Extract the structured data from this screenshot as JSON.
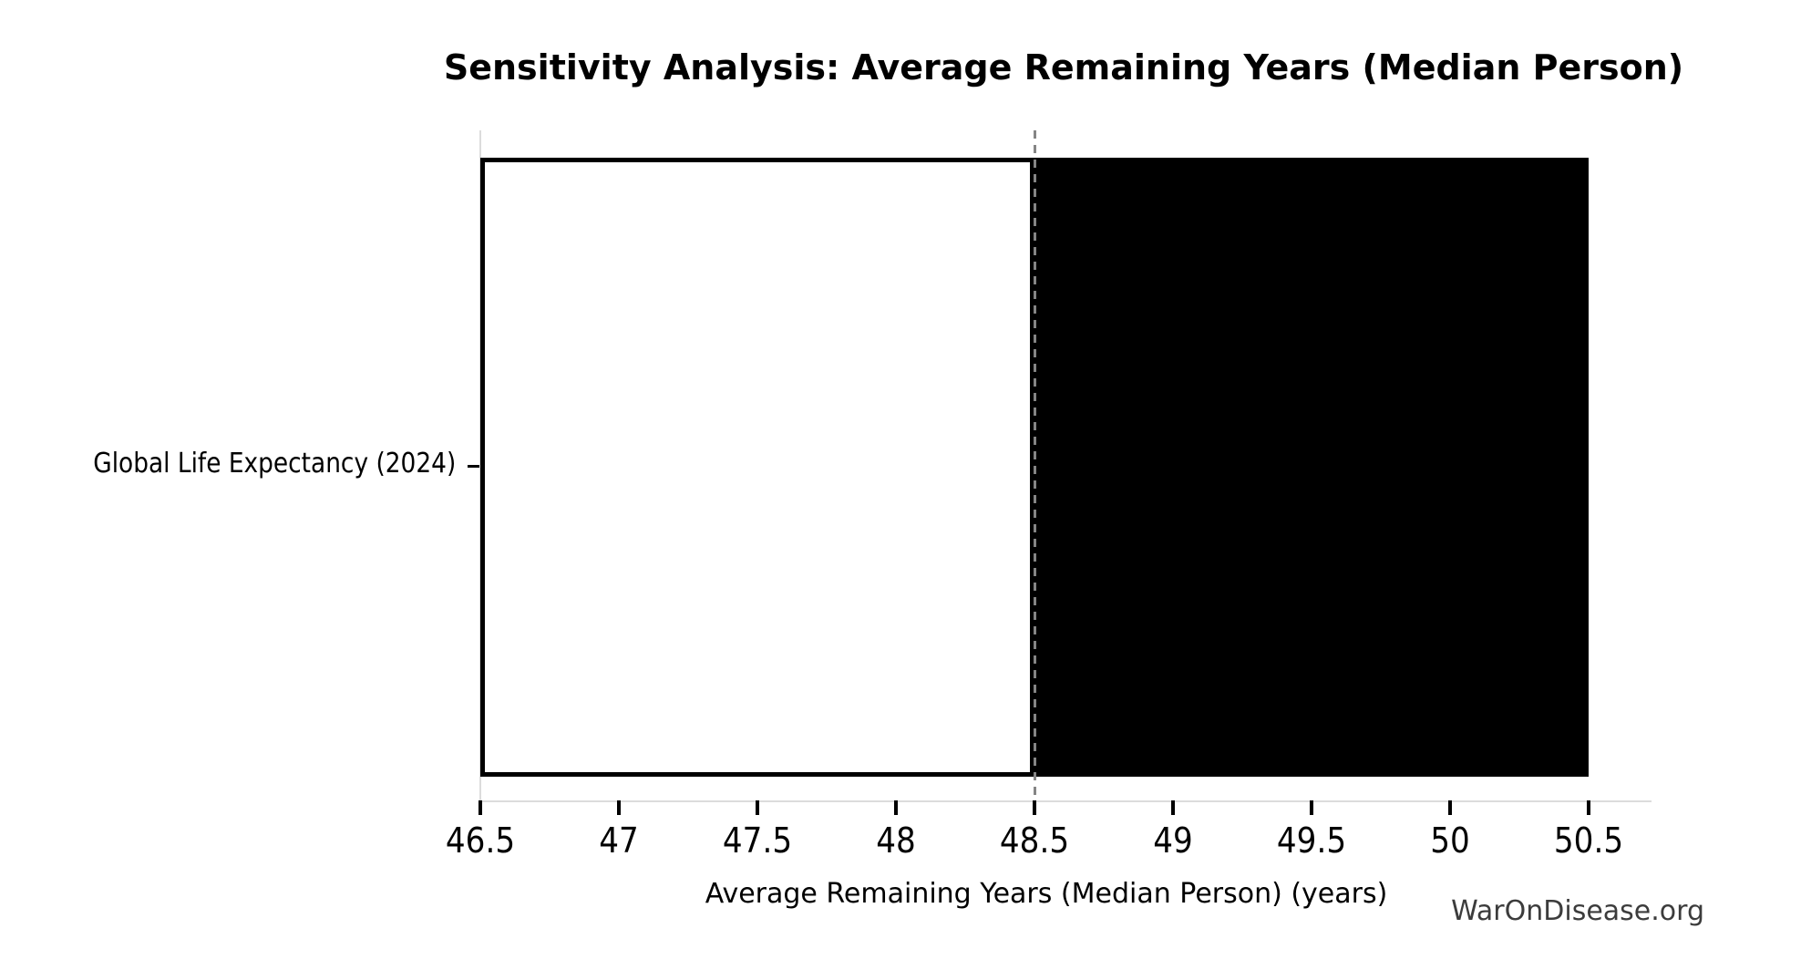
{
  "watermark": "WarOnDisease.org",
  "colors": {
    "background": "#ffffff",
    "bar_low_fill": "#ffffff",
    "bar_edge": "#000000",
    "bar_high_fill": "#000000",
    "baseline_line": "#858585",
    "axis_spine": "#dcdcdc",
    "tick_mark": "#000000",
    "text": "#000000",
    "watermark_text": "#3c3c3c"
  },
  "chart_data": {
    "type": "bar",
    "orientation": "horizontal",
    "title": "Sensitivity Analysis: Average Remaining Years (Median Person)",
    "xlabel": "Average Remaining Years (Median Person) (years)",
    "ylabel": "",
    "categories": [
      "Global Life Expectancy (2024)"
    ],
    "baseline": 48.5,
    "series": [
      {
        "name": "low",
        "values": [
          46.5
        ],
        "color": "#ffffff"
      },
      {
        "name": "high",
        "values": [
          50.5
        ],
        "color": "#000000"
      }
    ],
    "xlim": [
      46.5,
      50.73
    ],
    "xticks": [
      46.5,
      47,
      47.5,
      48,
      48.5,
      49,
      49.5,
      50,
      50.5
    ],
    "grid": false,
    "legend": false,
    "baseline_line_style": "dashed"
  }
}
